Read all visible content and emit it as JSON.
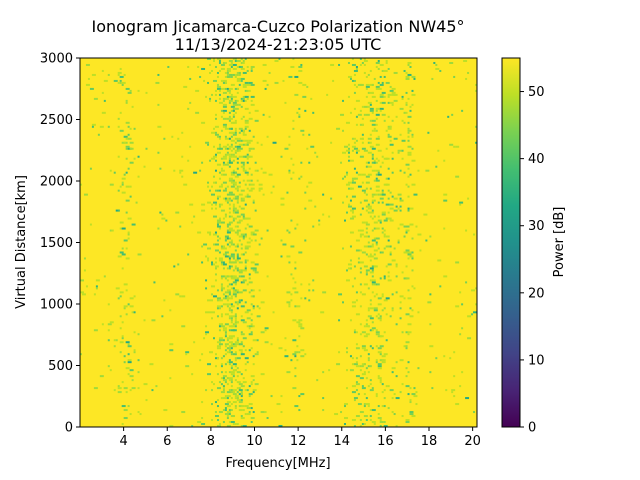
{
  "chart_data": {
    "type": "heatmap",
    "title": "Ionogram Jicamarca-Cuzco Polarization NW45°",
    "subtitle": "11/13/2024-21:23:05 UTC",
    "xlabel": "Frequency[MHz]",
    "ylabel": "Virtual Distance[km]",
    "xlim": [
      2.0,
      20.2
    ],
    "ylim": [
      0,
      3000
    ],
    "x_ticks": [
      4,
      6,
      8,
      10,
      12,
      14,
      16,
      18,
      20
    ],
    "y_ticks": [
      0,
      500,
      1000,
      1500,
      2000,
      2500,
      3000
    ],
    "colorbar": {
      "label": "Power [dB]",
      "range": [
        0,
        55
      ],
      "ticks": [
        0,
        10,
        20,
        30,
        40,
        50
      ],
      "colormap": "viridis"
    },
    "background_value_db": 54,
    "noise_bands_mhz": [
      {
        "center": 9.0,
        "width": 0.8,
        "strength": 0.3
      },
      {
        "center": 15.4,
        "width": 0.9,
        "strength": 0.16
      },
      {
        "center": 17.0,
        "width": 0.3,
        "strength": 0.1
      },
      {
        "center": 4.0,
        "width": 0.4,
        "strength": 0.06
      },
      {
        "center": 12.0,
        "width": 0.5,
        "strength": 0.04
      }
    ]
  }
}
